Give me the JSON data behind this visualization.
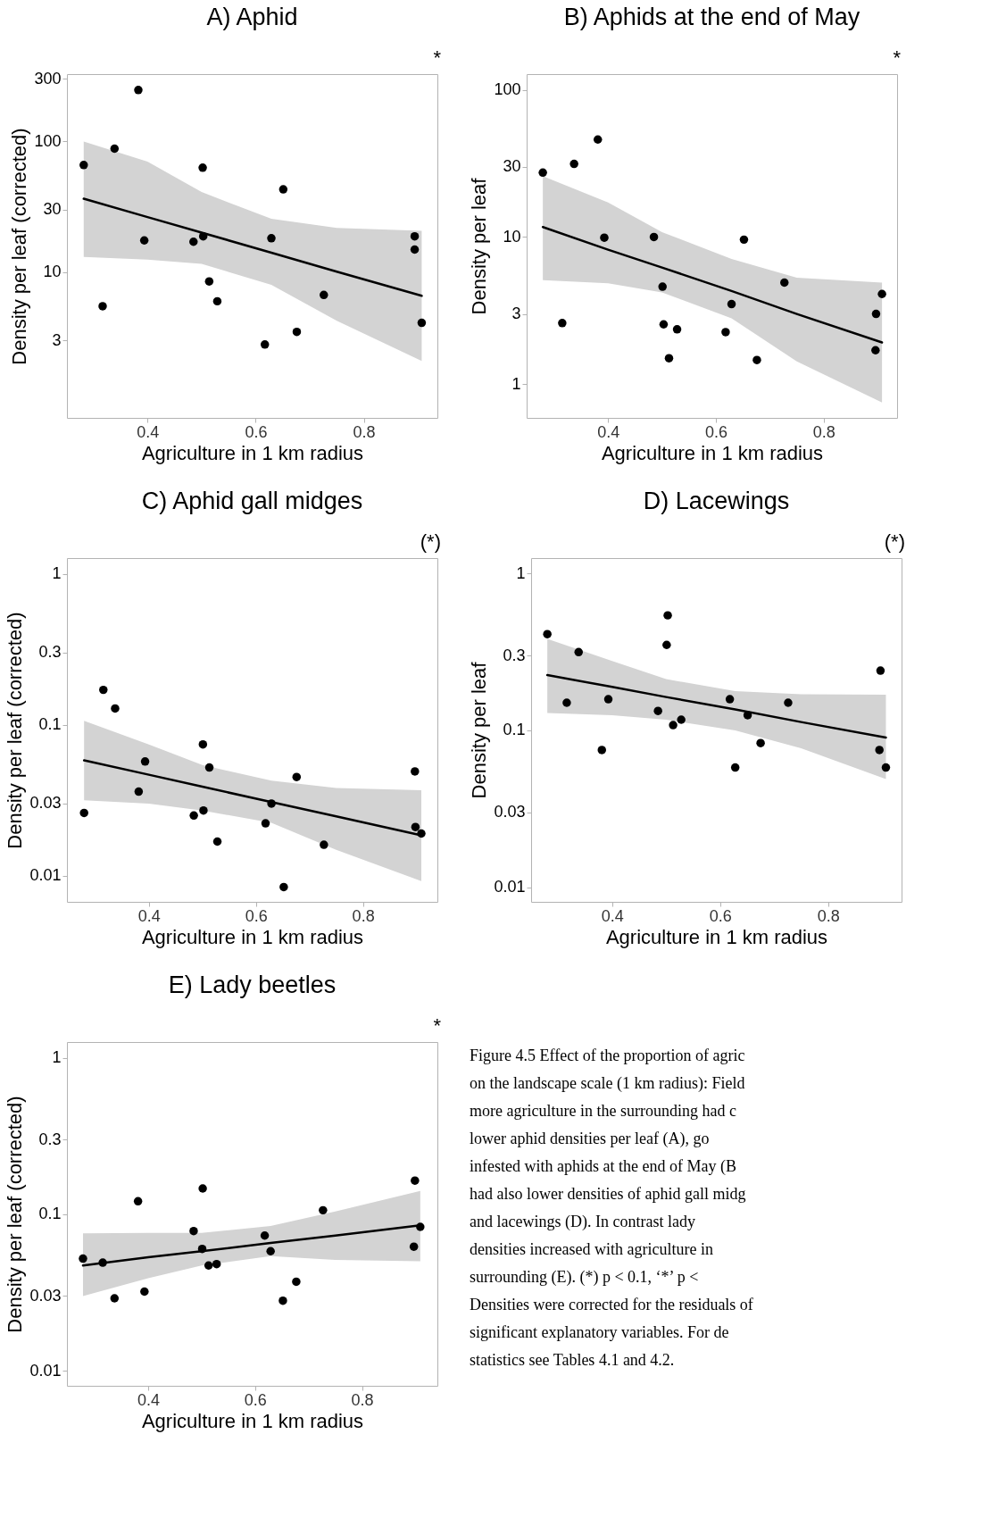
{
  "chart_data": [
    {
      "type": "scatter",
      "title": "A) Aphid",
      "xlabel": "Agriculture in 1 km radius",
      "ylabel": "Density per leaf (corrected)",
      "xlim": [
        0.251,
        0.936
      ],
      "ylim": [
        0.77,
        327
      ],
      "xticks": [
        0.4,
        0.6,
        0.8
      ],
      "yticks": [
        3,
        10,
        30,
        100,
        300
      ],
      "log": "y",
      "grid": false,
      "annotations": [
        "*"
      ],
      "series": [
        {
          "type": "scatter",
          "marker": "circle",
          "color": "#000000",
          "x": [
            0.282,
            0.317,
            0.339,
            0.383,
            0.394,
            0.485,
            0.502,
            0.503,
            0.514,
            0.529,
            0.617,
            0.629,
            0.651,
            0.676,
            0.726,
            0.894,
            0.894,
            0.907
          ],
          "values": [
            66,
            5.5,
            88,
            247,
            17.5,
            17.1,
            63,
            18.8,
            8.5,
            6.0,
            2.8,
            18.2,
            43,
            3.5,
            6.7,
            18.8,
            14.9,
            4.1
          ]
        },
        {
          "type": "line",
          "line_style": "solid",
          "color": "#000000",
          "x": [
            0.282,
            0.4,
            0.5,
            0.629,
            0.75,
            0.907
          ],
          "values": [
            36.5,
            26.4,
            20.1,
            14.1,
            10.1,
            6.6
          ],
          "lower": [
            13.1,
            12.5,
            11.6,
            8.0,
            4.25,
            2.1
          ],
          "upper": [
            100,
            70,
            41,
            25.6,
            21.8,
            20.7
          ]
        }
      ]
    },
    {
      "type": "scatter",
      "title": "B) Aphids at the end of May",
      "xlabel": "Agriculture in 1 km radius",
      "ylabel": "Density per leaf",
      "xlim": [
        0.249,
        0.936
      ],
      "ylim": [
        0.59,
        128
      ],
      "xticks": [
        0.4,
        0.6,
        0.8
      ],
      "yticks": [
        1,
        3,
        10,
        30,
        100
      ],
      "log": "y",
      "grid": false,
      "annotations": [
        "*"
      ],
      "series": [
        {
          "type": "scatter",
          "marker": "circle",
          "color": "#000000",
          "x": [
            0.279,
            0.315,
            0.337,
            0.381,
            0.393,
            0.485,
            0.501,
            0.503,
            0.513,
            0.528,
            0.618,
            0.629,
            0.652,
            0.676,
            0.727,
            0.897,
            0.896,
            0.908
          ],
          "values": [
            27.4,
            2.6,
            31.4,
            46,
            9.9,
            10.0,
            4.6,
            2.55,
            1.5,
            2.36,
            2.26,
            3.5,
            9.6,
            1.46,
            4.9,
            3.0,
            1.7,
            4.1
          ]
        },
        {
          "type": "line",
          "line_style": "solid",
          "color": "#000000",
          "x": [
            0.279,
            0.4,
            0.5,
            0.629,
            0.75,
            0.908
          ],
          "values": [
            11.7,
            8.2,
            6.2,
            4.3,
            3.0,
            1.92
          ],
          "lower": [
            5.1,
            4.85,
            4.2,
            2.8,
            1.43,
            0.75
          ],
          "upper": [
            25.9,
            17.2,
            10.8,
            7.1,
            5.3,
            4.9
          ]
        }
      ]
    },
    {
      "type": "scatter",
      "title": "C) Aphid gall midges",
      "xlabel": "Agriculture in 1 km radius",
      "ylabel": "Density per leaf (corrected)",
      "xlim": [
        0.247,
        0.939
      ],
      "ylim": [
        0.0067,
        1.27
      ],
      "xticks": [
        0.4,
        0.6,
        0.8
      ],
      "yticks": [
        0.01,
        0.03,
        0.1,
        0.3,
        1
      ],
      "log": "y",
      "grid": false,
      "annotations": [
        "(*)"
      ],
      "series": [
        {
          "type": "scatter",
          "marker": "circle",
          "color": "#000000",
          "x": [
            0.279,
            0.315,
            0.337,
            0.381,
            0.393,
            0.484,
            0.501,
            0.502,
            0.513,
            0.528,
            0.618,
            0.629,
            0.652,
            0.676,
            0.727,
            0.897,
            0.898,
            0.909
          ],
          "values": [
            0.026,
            0.17,
            0.128,
            0.036,
            0.057,
            0.025,
            0.074,
            0.027,
            0.052,
            0.0168,
            0.0222,
            0.03,
            0.0084,
            0.045,
            0.016,
            0.049,
            0.021,
            0.019
          ]
        },
        {
          "type": "line",
          "line_style": "solid",
          "color": "#000000",
          "x": [
            0.279,
            0.4,
            0.5,
            0.629,
            0.75,
            0.909
          ],
          "values": [
            0.058,
            0.0466,
            0.0388,
            0.0307,
            0.0247,
            0.0185
          ],
          "lower": [
            0.0316,
            0.03,
            0.027,
            0.0224,
            0.0148,
            0.0092
          ],
          "upper": [
            0.106,
            0.074,
            0.054,
            0.0426,
            0.038,
            0.0368
          ]
        }
      ]
    },
    {
      "type": "scatter",
      "title": "D) Lacewings",
      "xlabel": "Agriculture in 1 km radius",
      "ylabel": "Density per leaf",
      "xlim": [
        0.25,
        0.936
      ],
      "ylim": [
        0.0081,
        1.25
      ],
      "xticks": [
        0.4,
        0.6,
        0.8
      ],
      "yticks": [
        0.01,
        0.03,
        0.1,
        0.3,
        1
      ],
      "log": "y",
      "grid": false,
      "annotations": [
        "(*)"
      ],
      "series": [
        {
          "type": "scatter",
          "marker": "circle",
          "color": "#000000",
          "x": [
            0.28,
            0.316,
            0.338,
            0.381,
            0.393,
            0.485,
            0.501,
            0.503,
            0.513,
            0.528,
            0.618,
            0.628,
            0.651,
            0.675,
            0.726,
            0.895,
            0.897,
            0.907
          ],
          "values": [
            0.41,
            0.15,
            0.315,
            0.075,
            0.158,
            0.133,
            0.35,
            0.54,
            0.108,
            0.117,
            0.158,
            0.058,
            0.125,
            0.083,
            0.15,
            0.075,
            0.24,
            0.058
          ]
        },
        {
          "type": "line",
          "line_style": "solid",
          "color": "#000000",
          "x": [
            0.28,
            0.4,
            0.5,
            0.628,
            0.75,
            0.907
          ],
          "values": [
            0.225,
            0.189,
            0.163,
            0.136,
            0.113,
            0.09
          ],
          "lower": [
            0.129,
            0.125,
            0.117,
            0.1,
            0.077,
            0.049
          ],
          "upper": [
            0.383,
            0.277,
            0.212,
            0.178,
            0.17,
            0.169
          ]
        }
      ]
    },
    {
      "type": "scatter",
      "title": "E) Lady beetles",
      "xlabel": "Agriculture in 1 km radius",
      "ylabel": "Density per leaf (corrected)",
      "xlim": [
        0.248,
        0.941
      ],
      "ylim": [
        0.008,
        1.26
      ],
      "xticks": [
        0.4,
        0.6,
        0.8
      ],
      "yticks": [
        0.01,
        0.03,
        0.1,
        0.3,
        1
      ],
      "log": "y",
      "grid": false,
      "annotations": [
        "*"
      ],
      "series": [
        {
          "type": "scatter",
          "marker": "circle",
          "color": "#000000",
          "x": [
            0.278,
            0.315,
            0.337,
            0.381,
            0.393,
            0.485,
            0.501,
            0.502,
            0.513,
            0.528,
            0.618,
            0.629,
            0.652,
            0.677,
            0.727,
            0.897,
            0.899,
            0.909
          ],
          "values": [
            0.052,
            0.049,
            0.029,
            0.121,
            0.032,
            0.078,
            0.06,
            0.146,
            0.047,
            0.048,
            0.073,
            0.058,
            0.028,
            0.037,
            0.106,
            0.062,
            0.164,
            0.083
          ]
        },
        {
          "type": "line",
          "line_style": "solid",
          "color": "#000000",
          "x": [
            0.278,
            0.4,
            0.5,
            0.629,
            0.75,
            0.909
          ],
          "values": [
            0.047,
            0.053,
            0.058,
            0.0655,
            0.073,
            0.085
          ],
          "lower": [
            0.03,
            0.039,
            0.047,
            0.054,
            0.051,
            0.05
          ],
          "upper": [
            0.0755,
            0.076,
            0.076,
            0.084,
            0.104,
            0.141
          ]
        }
      ]
    },
    {
      "type": "other",
      "annotations": [
        "Figure 4.5 Effect of the proportion of agric",
        "on the landscape scale (1 km radius): Field",
        "more agriculture in the surrounding had c",
        "lower aphid densities per leaf (A), go",
        "infested with aphids at the end of May (B",
        "had also lower densities of aphid gall midg",
        "and lacewings (D). In contrast lady",
        "densities increased with agriculture in",
        "surrounding (E). (*) p < 0.1, ‘*’ p <",
        "Densities were corrected for the residuals of",
        "significant explanatory variables. For de",
        "statistics see Tables 4.1 and 4.2."
      ]
    }
  ]
}
